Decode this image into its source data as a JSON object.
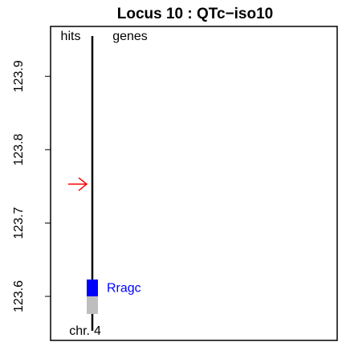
{
  "chart_data": {
    "type": "locus",
    "title": "Locus 10 : QTc−iso10",
    "column_labels": [
      "hits",
      "genes"
    ],
    "chr_prefix": "chr.",
    "chromosome": "4",
    "ylim": [
      123.54,
      123.968
    ],
    "yticks": [
      123.6,
      123.7,
      123.8,
      123.9
    ],
    "hits": [
      {
        "position": 123.753,
        "color": "#ff0000"
      }
    ],
    "genes": [
      {
        "name": "Rragc",
        "color": "#0000ff",
        "segments": [
          {
            "start": 123.6,
            "end": 123.623,
            "color": "#0000ff"
          },
          {
            "start": 123.576,
            "end": 123.6,
            "color": "#bebebe"
          }
        ]
      }
    ]
  }
}
